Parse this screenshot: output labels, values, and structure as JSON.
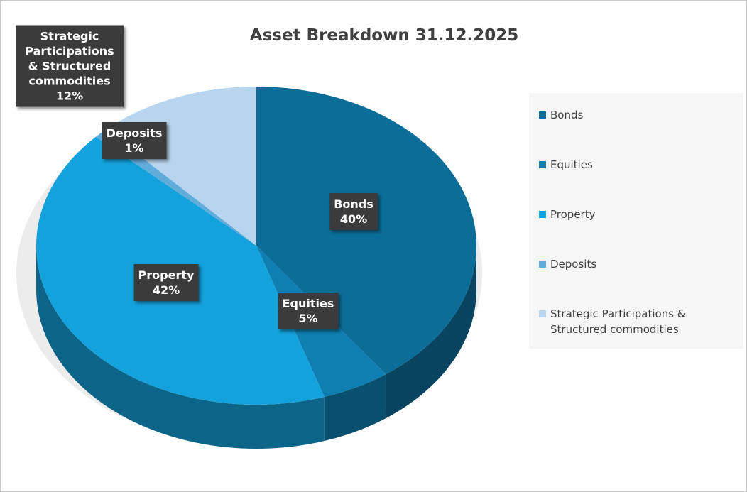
{
  "chart_data": {
    "type": "pie",
    "title": "Asset Breakdown 31.12.2025",
    "categories": [
      "Bonds",
      "Equities",
      "Property",
      "Deposits",
      "Strategic Participations & Structured commodities"
    ],
    "values": [
      40,
      5,
      42,
      1,
      12
    ],
    "value_labels": [
      "40%",
      "5%",
      "42%",
      "1%",
      "12%"
    ],
    "colors": [
      "#0d6d99",
      "#0f7fb2",
      "#14a2dc",
      "#62acdc",
      "#b7d5ee"
    ],
    "legend": "right"
  }
}
